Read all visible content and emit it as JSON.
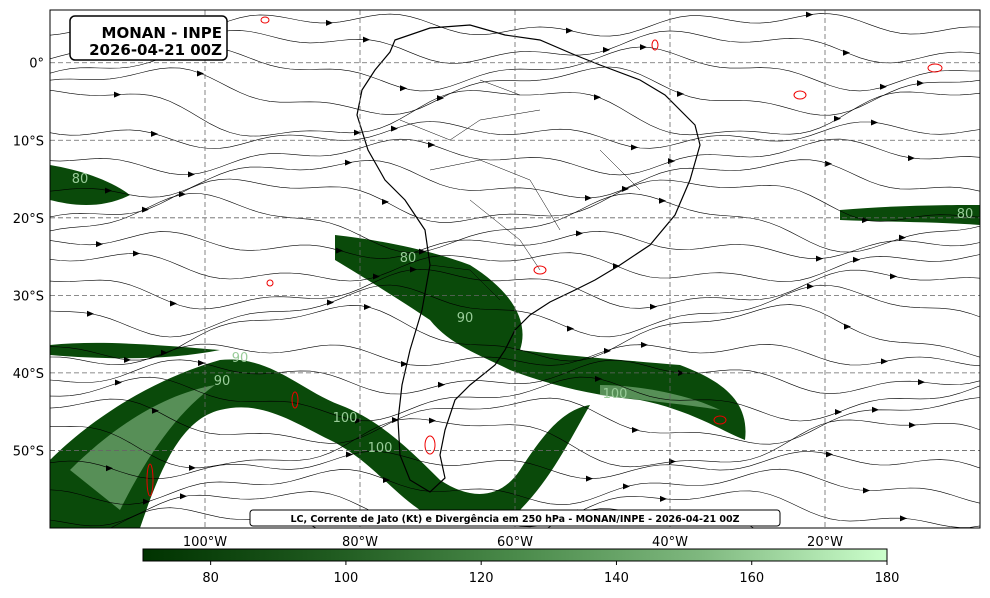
{
  "map": {
    "title": [
      "MONAN - INPE",
      "2026-04-21 00Z"
    ],
    "caption": "LC, Corrente de Jato (Kt) e Divergência em 250 hPa - MONAN/INPE - 2026-04-21 00Z",
    "xlim": [
      -120,
      0
    ],
    "ylim": [
      -60,
      6.8
    ],
    "xticks": [
      {
        "value": -100,
        "label": "100°W"
      },
      {
        "value": -80,
        "label": "80°W"
      },
      {
        "value": -60,
        "label": "60°W"
      },
      {
        "value": -40,
        "label": "40°W"
      },
      {
        "value": -20,
        "label": "20°W"
      }
    ],
    "yticks": [
      {
        "value": 0,
        "label": "0°"
      },
      {
        "value": -10,
        "label": "10°S"
      },
      {
        "value": -20,
        "label": "20°S"
      },
      {
        "value": -30,
        "label": "30°S"
      },
      {
        "value": -40,
        "label": "40°S"
      },
      {
        "value": -50,
        "label": "50°S"
      }
    ],
    "contour_labels": [
      "80",
      "80",
      "80",
      "90",
      "90",
      "90",
      "100",
      "100",
      "100"
    ],
    "colorbar": {
      "range": [
        70,
        180
      ],
      "ticks": [
        80,
        100,
        120,
        140,
        160,
        180
      ],
      "colors": [
        "#003300",
        "#1f5a1f",
        "#4a8a4a",
        "#7fb87f",
        "#ccffcc"
      ]
    }
  }
}
